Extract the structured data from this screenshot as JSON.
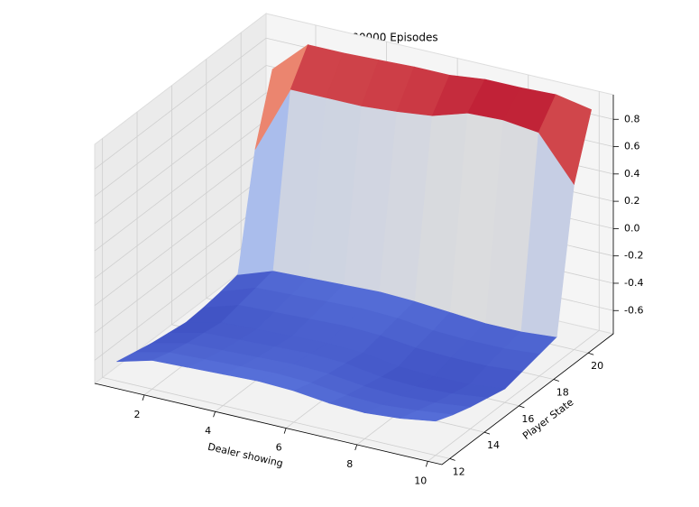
{
  "chart_data": {
    "type": "surface",
    "title": "No Usable Ace, 500000 Episodes",
    "xlabel": "Dealer showing",
    "ylabel": "Player State",
    "x": [
      1,
      2,
      3,
      4,
      5,
      6,
      7,
      8,
      9,
      10
    ],
    "y": [
      12,
      13,
      14,
      15,
      16,
      17,
      18,
      19,
      20,
      21
    ],
    "z": [
      [
        -0.63,
        -0.56,
        -0.55,
        -0.54,
        -0.53,
        -0.54,
        -0.57,
        -0.58,
        -0.56,
        -0.52
      ],
      [
        -0.66,
        -0.6,
        -0.59,
        -0.58,
        -0.57,
        -0.58,
        -0.61,
        -0.62,
        -0.6,
        -0.57
      ],
      [
        -0.69,
        -0.63,
        -0.62,
        -0.61,
        -0.6,
        -0.61,
        -0.64,
        -0.65,
        -0.64,
        -0.61
      ],
      [
        -0.71,
        -0.65,
        -0.64,
        -0.63,
        -0.62,
        -0.63,
        -0.67,
        -0.68,
        -0.67,
        -0.64
      ],
      [
        -0.73,
        -0.67,
        -0.66,
        -0.65,
        -0.64,
        -0.65,
        -0.69,
        -0.7,
        -0.7,
        -0.67
      ],
      [
        -0.72,
        -0.64,
        -0.63,
        -0.62,
        -0.61,
        -0.62,
        -0.65,
        -0.66,
        -0.66,
        -0.64
      ],
      [
        -0.7,
        -0.61,
        -0.6,
        -0.59,
        -0.58,
        -0.59,
        -0.62,
        -0.63,
        -0.63,
        -0.61
      ],
      [
        -0.67,
        -0.58,
        -0.57,
        -0.56,
        -0.55,
        -0.56,
        -0.58,
        -0.6,
        -0.6,
        -0.58
      ],
      [
        0.15,
        0.65,
        0.65,
        0.65,
        0.67,
        0.7,
        0.78,
        0.79,
        0.76,
        0.44
      ],
      [
        0.64,
        0.88,
        0.88,
        0.89,
        0.9,
        0.9,
        0.93,
        0.93,
        0.94,
        0.89
      ]
    ],
    "colormap": "coolwarm",
    "xlim": [
      0.6,
      10.4
    ],
    "ylim": [
      11.55,
      21.45
    ],
    "zlim": [
      -0.77,
      0.98
    ],
    "xticks": [
      2,
      4,
      6,
      8,
      10
    ],
    "yticks": [
      12,
      14,
      16,
      18,
      20
    ],
    "zticks": [
      -0.6,
      -0.4,
      -0.2,
      {
        "value": 0,
        "label": "0.0"
      },
      0.2,
      0.4,
      0.6,
      0.8
    ],
    "grid": true
  }
}
